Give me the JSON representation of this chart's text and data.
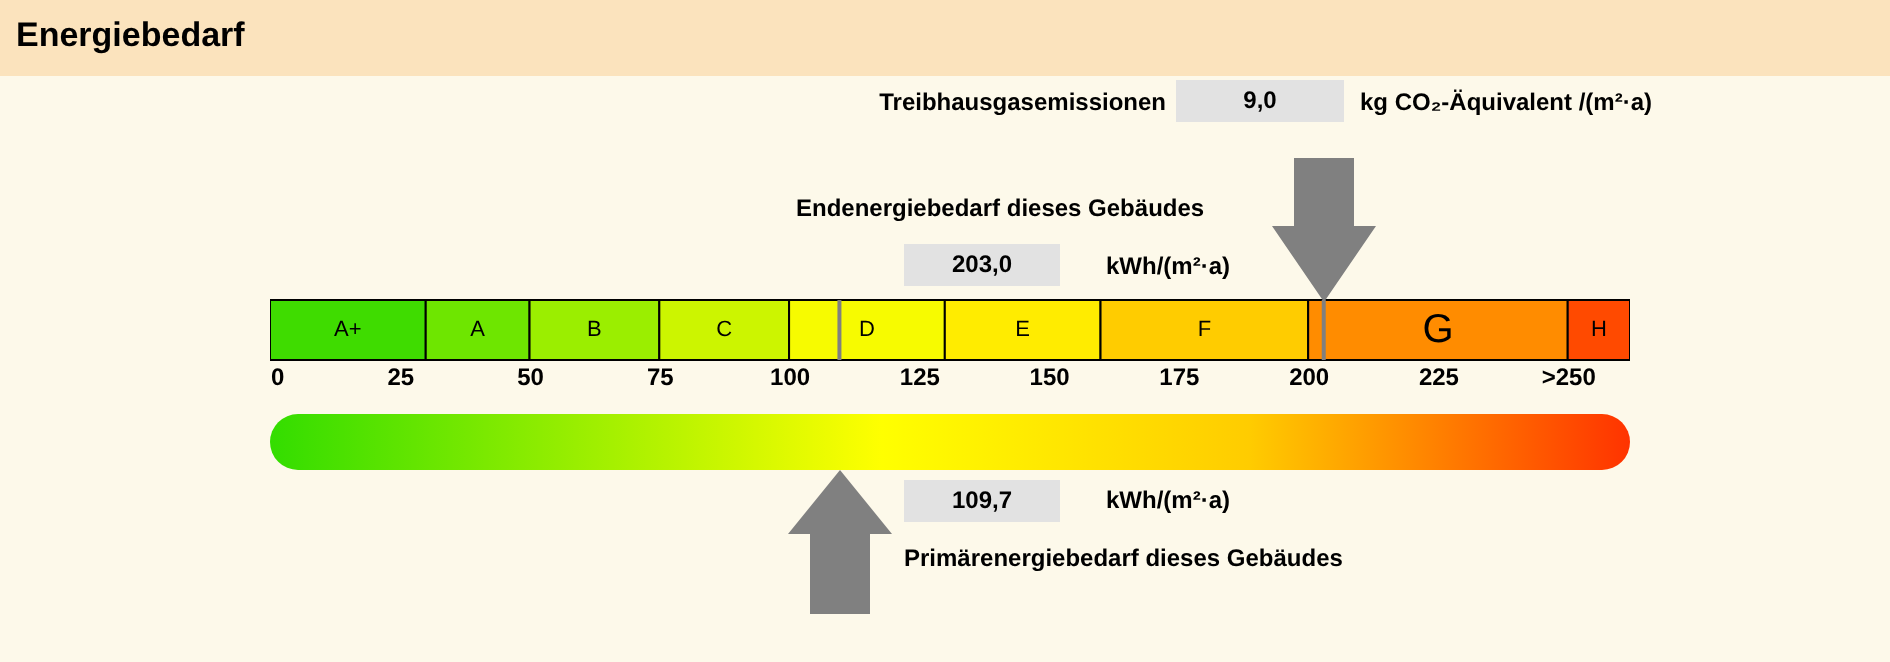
{
  "chart_data": {
    "type": "bar",
    "title": "Energiebedarf",
    "orientation": "horizontal",
    "stacked": true,
    "categories": [
      null
    ],
    "series": [
      {
        "name": "A+",
        "color": "#3fdc00",
        "values": [
          30
        ]
      },
      {
        "name": "A",
        "color": "#6ee600",
        "values": [
          20
        ]
      },
      {
        "name": "B",
        "color": "#9bee00",
        "values": [
          25
        ]
      },
      {
        "name": "C",
        "color": "#ccf500",
        "values": [
          25
        ]
      },
      {
        "name": "D",
        "color": "#f7fb00",
        "values": [
          30
        ]
      },
      {
        "name": "E",
        "color": "#ffec00",
        "values": [
          30
        ]
      },
      {
        "name": "F",
        "color": "#ffcc00",
        "values": [
          40
        ]
      },
      {
        "name": "G",
        "color": "#ff8c00",
        "values": [
          50
        ]
      },
      {
        "name": "H",
        "color": "#ff4a00",
        "values": [
          12
        ]
      }
    ],
    "xlim": [
      0,
      262
    ],
    "xticks": [
      0,
      25,
      50,
      75,
      100,
      125,
      150,
      175,
      200,
      225,
      {
        "value": 250,
        "label": ">250"
      }
    ],
    "ref_lines": [
      {
        "axis": "x",
        "value": 203.0,
        "color": "#808080"
      },
      {
        "axis": "x",
        "value": 109.7,
        "color": "#808080"
      }
    ],
    "annotations": [
      "Treibhausgasemissionen",
      "9,0",
      "kg CO₂-Äquivalent /(m²·a)",
      "Endenergiebedarf dieses Gebäudes",
      "203,0",
      "kWh/(m²·a)",
      "109,7",
      "kWh/(m²·a)",
      "Primärenergiebedarf dieses Gebäudes"
    ],
    "grid": false
  }
}
